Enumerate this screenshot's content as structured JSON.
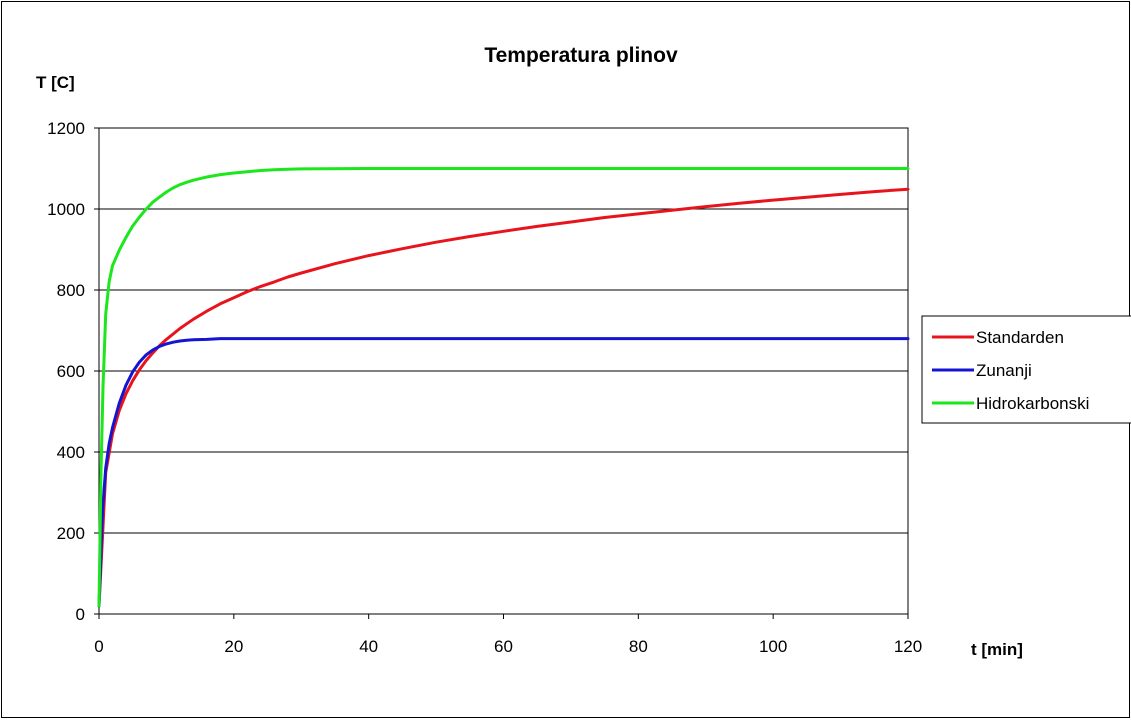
{
  "chart_data": {
    "type": "line",
    "title": "Temperatura plinov",
    "xlabel": "t [min]",
    "ylabel": "T [C]",
    "xlim": [
      0,
      120
    ],
    "ylim": [
      0,
      1200
    ],
    "x_ticks": [
      0,
      20,
      40,
      60,
      80,
      100,
      120
    ],
    "y_ticks": [
      0,
      200,
      400,
      600,
      800,
      1000,
      1200
    ],
    "grid": "horizontal",
    "legend_position": "right",
    "series": [
      {
        "name": "Standarden",
        "color": "#e8141c",
        "x": [
          0,
          1,
          2,
          3,
          4,
          5,
          6,
          7,
          8,
          9,
          10,
          12,
          14,
          16,
          18,
          20,
          22,
          24,
          26,
          28,
          30,
          35,
          40,
          45,
          50,
          55,
          60,
          65,
          70,
          75,
          80,
          85,
          90,
          95,
          100,
          105,
          110,
          115,
          120
        ],
        "values": [
          20,
          349,
          445,
          502,
          544,
          576,
          603,
          626,
          645,
          663,
          678,
          705,
          728,
          748,
          766,
          781,
          796,
          809,
          820,
          832,
          842,
          865,
          885,
          902,
          918,
          932,
          945,
          957,
          968,
          979,
          988,
          997,
          1006,
          1014,
          1022,
          1029,
          1036,
          1043,
          1049
        ]
      },
      {
        "name": "Zunanji",
        "color": "#1414d2",
        "x": [
          0,
          0.5,
          1,
          1.5,
          2,
          3,
          4,
          5,
          6,
          7,
          8,
          9,
          10,
          11,
          12,
          13,
          14,
          16,
          18,
          20,
          30,
          120
        ],
        "values": [
          20,
          250,
          360,
          420,
          460,
          520,
          565,
          598,
          622,
          640,
          652,
          661,
          667,
          671,
          674,
          676,
          677,
          678,
          680,
          680,
          680,
          680
        ]
      },
      {
        "name": "Hidrokarbonski",
        "color": "#1ce61c",
        "x": [
          0,
          0.3,
          0.6,
          1,
          1.5,
          2,
          3,
          4,
          5,
          6,
          7,
          8,
          9,
          10,
          11,
          12,
          13,
          14,
          15,
          16,
          18,
          20,
          22,
          24,
          26,
          28,
          30,
          40,
          120
        ],
        "values": [
          20,
          350,
          560,
          740,
          820,
          860,
          898,
          930,
          958,
          980,
          1000,
          1017,
          1030,
          1042,
          1052,
          1060,
          1066,
          1071,
          1075,
          1079,
          1085,
          1089,
          1092,
          1095,
          1097,
          1098,
          1099,
          1100,
          1100
        ]
      }
    ]
  }
}
